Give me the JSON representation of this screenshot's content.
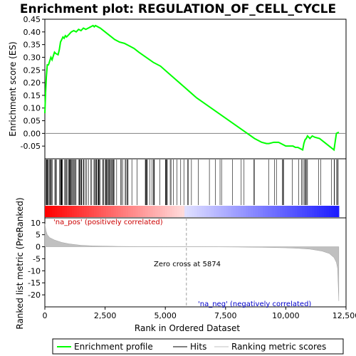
{
  "chart_data": {
    "type": "line",
    "title": "Enrichment plot: REGULATION_OF_CELL_CYCLE",
    "top_panel": {
      "ylabel": "Enrichment score (ES)",
      "ylim": [
        -0.1,
        0.45
      ],
      "yticks": [
        -0.05,
        0.0,
        0.05,
        0.1,
        0.15,
        0.2,
        0.25,
        0.3,
        0.35,
        0.4,
        0.45
      ],
      "ytick_labels": [
        "-0.05",
        "0.00",
        "0.05",
        "0.10",
        "0.15",
        "0.20",
        "0.25",
        "0.30",
        "0.35",
        "0.40",
        "0.45"
      ],
      "series": [
        {
          "name": "Enrichment profile",
          "color": "#00ff00",
          "x": [
            0,
            30,
            60,
            100,
            150,
            250,
            300,
            400,
            450,
            550,
            600,
            650,
            700,
            750,
            800,
            850,
            900,
            1000,
            1050,
            1100,
            1200,
            1300,
            1400,
            1500,
            1600,
            1700,
            1800,
            1900,
            2000,
            2050,
            2100,
            2200,
            2300,
            2500,
            2700,
            2900,
            3100,
            3300,
            3500,
            3700,
            3900,
            4200,
            4500,
            4800,
            5100,
            5400,
            5700,
            6000,
            6300,
            6600,
            6900,
            7200,
            7500,
            7800,
            8100,
            8400,
            8700,
            9000,
            9200,
            9300,
            9500,
            9700,
            9800,
            9900,
            10000,
            10100,
            10200,
            10300,
            10400,
            10500,
            10600,
            10700,
            10750,
            10800,
            10850,
            10900,
            10950,
            11000,
            11100,
            11200,
            11400,
            11600,
            11800,
            12000,
            12100,
            12200
          ],
          "y": [
            0.08,
            0.16,
            0.22,
            0.27,
            0.27,
            0.3,
            0.29,
            0.32,
            0.315,
            0.31,
            0.33,
            0.36,
            0.37,
            0.38,
            0.375,
            0.385,
            0.38,
            0.39,
            0.395,
            0.4,
            0.405,
            0.4,
            0.41,
            0.405,
            0.415,
            0.41,
            0.415,
            0.42,
            0.425,
            0.42,
            0.425,
            0.42,
            0.415,
            0.4,
            0.385,
            0.37,
            0.36,
            0.355,
            0.345,
            0.335,
            0.32,
            0.3,
            0.28,
            0.265,
            0.24,
            0.215,
            0.19,
            0.165,
            0.14,
            0.12,
            0.1,
            0.08,
            0.06,
            0.04,
            0.02,
            0.0,
            -0.02,
            -0.035,
            -0.04,
            -0.04,
            -0.035,
            -0.035,
            -0.04,
            -0.045,
            -0.05,
            -0.05,
            -0.05,
            -0.05,
            -0.055,
            -0.055,
            -0.06,
            -0.065,
            -0.04,
            -0.025,
            -0.02,
            -0.01,
            -0.015,
            -0.02,
            -0.01,
            -0.015,
            -0.02,
            -0.035,
            -0.05,
            -0.065,
            0.0,
            0.005
          ]
        }
      ]
    },
    "middle_panel": {
      "name": "Hits",
      "hit_ranks_note": "gene set hit positions in ranked list",
      "colorbar": "red (positive) to blue (negative)"
    },
    "bottom_panel": {
      "ylabel": "Ranked list metric (PreRanked)",
      "ylim": [
        -25,
        12
      ],
      "yticks": [
        10,
        5,
        0,
        -5,
        -10,
        -15,
        -20
      ],
      "ytick_labels": [
        "10",
        "5",
        "0",
        "-5",
        "-10",
        "-15",
        "-20"
      ],
      "xlabel": "Rank in Ordered Dataset",
      "xlim": [
        0,
        12500
      ],
      "xticks": [
        0,
        2500,
        5000,
        7500,
        10000,
        12500
      ],
      "xtick_labels": [
        "0",
        "2,500",
        "5,000",
        "7,500",
        "10,000",
        "12,500"
      ],
      "series": [
        {
          "name": "Ranking metric scores",
          "color": "#c0c0c0",
          "x": [
            0,
            50,
            100,
            200,
            400,
            700,
            1000,
            1500,
            2000,
            3000,
            4000,
            5000,
            5874,
            7000,
            8000,
            9000,
            10000,
            10500,
            11000,
            11500,
            11800,
            12000,
            12100,
            12150,
            12200
          ],
          "y": [
            9.5,
            6.5,
            5.0,
            3.8,
            2.8,
            1.8,
            1.2,
            0.6,
            0.35,
            0.15,
            0.07,
            0.02,
            0.0,
            -0.05,
            -0.12,
            -0.25,
            -0.45,
            -0.65,
            -1.0,
            -1.8,
            -2.8,
            -4.5,
            -6.5,
            -9.0,
            -22.5
          ]
        }
      ],
      "zero_cross_rank": 5874,
      "annotations": {
        "zero_cross": "Zero cross at 5874",
        "pos_label": "'na_pos' (positively correlated)",
        "neg_label": "'na_neg' (negatively correlated)"
      }
    },
    "colors": {
      "pos_label": "#cc0000",
      "neg_label": "#0000cc",
      "es_line": "#00ff00",
      "metric_fill": "#c0c0c0"
    },
    "legend": {
      "placement": "bottom",
      "entries": [
        "Enrichment profile",
        "Hits",
        "Ranking metric scores"
      ]
    }
  }
}
